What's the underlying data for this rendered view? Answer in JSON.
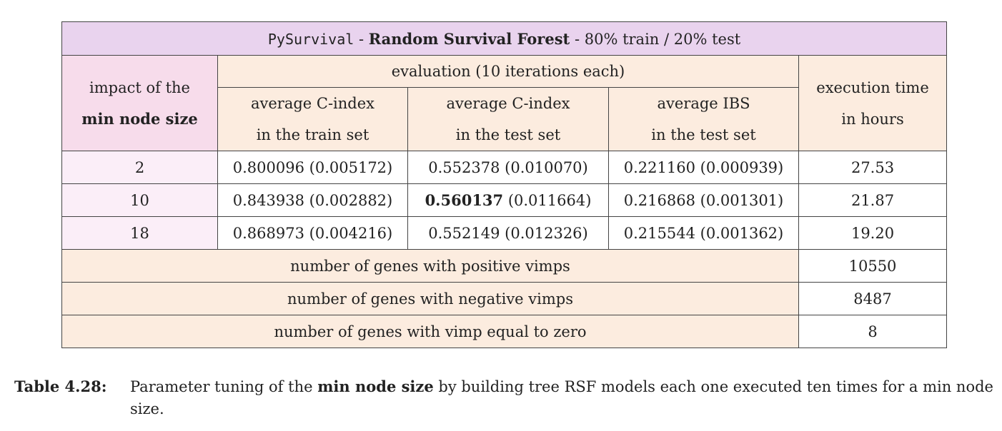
{
  "table": {
    "title": {
      "library": "PySurvival",
      "sep1": " - ",
      "model": "Random Survival Forest",
      "sep2": " - ",
      "split": "80% train / 20% test"
    },
    "param_header": {
      "line1": "impact of the",
      "line2": "min node size"
    },
    "eval_header": "evaluation (10 iterations each)",
    "time_header": {
      "line1": "execution time",
      "line2": "in hours"
    },
    "sub_headers": [
      {
        "line1": "average C-index",
        "line2": "in the train set"
      },
      {
        "line1": "average C-index",
        "line2": "in the test set"
      },
      {
        "line1": "average IBS",
        "line2": "in the test set"
      }
    ],
    "rows": [
      {
        "param": "2",
        "train_c": "0.800096 (0.005172)",
        "test_c_value": "0.552378",
        "test_c_sd": " (0.010070)",
        "ibs": "0.221160 (0.000939)",
        "time": "27.53"
      },
      {
        "param": "10",
        "train_c": "0.843938 (0.002882)",
        "test_c_value": "0.560137",
        "test_c_sd": " (0.011664)",
        "ibs": "0.216868 (0.001301)",
        "time": "21.87"
      },
      {
        "param": "18",
        "train_c": "0.868973 (0.004216)",
        "test_c_value": "0.552149",
        "test_c_sd": " (0.012326)",
        "ibs": "0.215544 (0.001362)",
        "time": "19.20"
      }
    ],
    "summary": [
      {
        "label": "number of genes with positive vimps",
        "value": "10550"
      },
      {
        "label": "number of genes with negative vimps",
        "value": "8487"
      },
      {
        "label": "number of genes with vimp equal to zero",
        "value": "8"
      }
    ],
    "colors": {
      "title_bg": "#e9d3ee",
      "header_bg": "#fcecdf",
      "param_header_bg": "#f7dceb",
      "param_cell_bg": "#fbeef8"
    }
  },
  "caption": {
    "label": "Table 4.28:",
    "text_before": "Parameter tuning of the ",
    "bold_term": "min node size",
    "text_after": " by building tree RSF models each one executed ten times for a min node size."
  }
}
